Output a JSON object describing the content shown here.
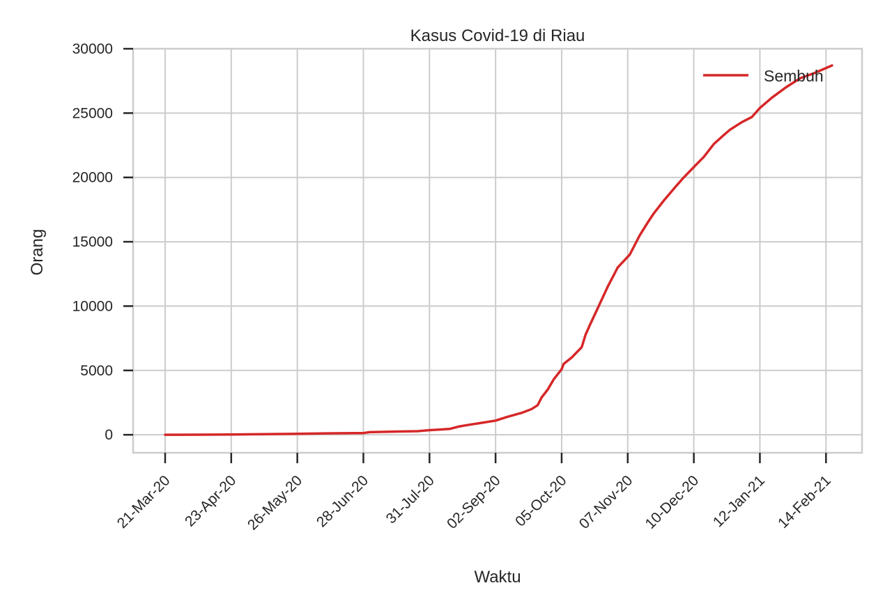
{
  "chart_data": {
    "type": "line",
    "title": "Kasus Covid-19 di Riau",
    "xlabel": "Waktu",
    "ylabel": "Orang",
    "x_ticks": [
      "21-Mar-20",
      "23-Apr-20",
      "26-May-20",
      "28-Jun-20",
      "31-Jul-20",
      "02-Sep-20",
      "05-Oct-20",
      "07-Nov-20",
      "10-Dec-20",
      "12-Jan-21",
      "14-Feb-21"
    ],
    "y_ticks": [
      "0",
      "5000",
      "10000",
      "15000",
      "20000",
      "25000",
      "30000"
    ],
    "ylim": [
      -1400,
      30000
    ],
    "xlim": [
      "2020-03-05",
      "2021-03-04"
    ],
    "grid": true,
    "legend_position": "top-right",
    "colors": {
      "series": "#d62728",
      "grid": "#cccccc",
      "axis": "#262626"
    },
    "series": [
      {
        "name": "Sembuh",
        "x": [
          "2020-03-21",
          "2020-04-08",
          "2020-04-23",
          "2020-05-05",
          "2020-05-26",
          "2020-06-10",
          "2020-06-28",
          "2020-07-01",
          "2020-07-15",
          "2020-07-25",
          "2020-07-31",
          "2020-08-10",
          "2020-08-15",
          "2020-08-20",
          "2020-08-25",
          "2020-09-02",
          "2020-09-08",
          "2020-09-15",
          "2020-09-20",
          "2020-09-23",
          "2020-09-25",
          "2020-09-28",
          "2020-10-01",
          "2020-10-05",
          "2020-10-06",
          "2020-10-10",
          "2020-10-15",
          "2020-10-17",
          "2020-10-19",
          "2020-10-22",
          "2020-10-25",
          "2020-10-28",
          "2020-11-02",
          "2020-11-05",
          "2020-11-08",
          "2020-11-10",
          "2020-11-13",
          "2020-11-15",
          "2020-11-17",
          "2020-11-20",
          "2020-11-25",
          "2020-12-01",
          "2020-12-05",
          "2020-12-10",
          "2020-12-15",
          "2020-12-20",
          "2020-12-25",
          "2020-12-28",
          "2021-01-03",
          "2021-01-08",
          "2021-01-12",
          "2021-01-18",
          "2021-01-25",
          "2021-02-01",
          "2021-02-08",
          "2021-02-17"
        ],
        "values": [
          0,
          10,
          25,
          40,
          80,
          110,
          130,
          200,
          250,
          280,
          360,
          450,
          650,
          780,
          900,
          1100,
          1400,
          1700,
          2000,
          2300,
          2900,
          3500,
          4300,
          5100,
          5500,
          6000,
          6800,
          7800,
          8500,
          9500,
          10500,
          11500,
          13000,
          13500,
          14000,
          14600,
          15500,
          16000,
          16500,
          17200,
          18200,
          19300,
          20000,
          20800,
          21600,
          22600,
          23300,
          23700,
          24300,
          24700,
          25400,
          26200,
          27000,
          27700,
          28100,
          28700
        ]
      }
    ]
  }
}
